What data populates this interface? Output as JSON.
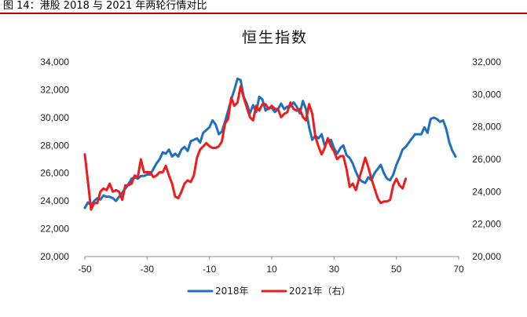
{
  "figure_caption": "图 14：港股 2018 与 2021 年两轮行情对比",
  "chart_data": {
    "type": "line",
    "title": "恒生指数",
    "xlabel": "",
    "ylabel": "",
    "xlim": [
      -50,
      70
    ],
    "x_ticks": [
      -50,
      -30,
      -10,
      10,
      30,
      50,
      70
    ],
    "x_tick_labels": [
      "-50",
      "-30",
      "-10",
      "10",
      "30",
      "50",
      "70"
    ],
    "ylim_left": [
      20000,
      34000
    ],
    "y_left_ticks": [
      20000,
      22000,
      24000,
      26000,
      28000,
      30000,
      32000,
      34000
    ],
    "y_left_tick_labels": [
      "20,000",
      "22,000",
      "24,000",
      "26,000",
      "28,000",
      "30,000",
      "32,000",
      "34,000"
    ],
    "ylim_right": [
      20000,
      32000
    ],
    "y_right_ticks": [
      20000,
      22000,
      24000,
      26000,
      28000,
      30000,
      32000
    ],
    "y_right_tick_labels": [
      "20,000",
      "22,000",
      "24,000",
      "26,000",
      "28,000",
      "30,000",
      "32,000"
    ],
    "grid": false,
    "legend_position": "bottom",
    "series": [
      {
        "name": "2018年",
        "color": "#1f6fbf",
        "axis": "left",
        "x": [
          -50,
          -49,
          -48,
          -47,
          -46,
          -45,
          -44,
          -43,
          -42,
          -41,
          -40,
          -39,
          -38,
          -37,
          -36,
          -35,
          -34,
          -33,
          -32,
          -31,
          -30,
          -29,
          -28,
          -27,
          -26,
          -25,
          -24,
          -23,
          -22,
          -21,
          -20,
          -19,
          -18,
          -17,
          -16,
          -15,
          -14,
          -13,
          -12,
          -11,
          -10,
          -9,
          -8,
          -7,
          -6,
          -5,
          -4,
          -3,
          -2,
          -1,
          0,
          1,
          2,
          3,
          4,
          5,
          6,
          7,
          8,
          9,
          10,
          11,
          12,
          13,
          14,
          15,
          16,
          17,
          18,
          19,
          20,
          21,
          22,
          23,
          24,
          25,
          26,
          27,
          28,
          29,
          30,
          31,
          32,
          33,
          34,
          35,
          36,
          37,
          38,
          39,
          40,
          41,
          42,
          43,
          44,
          45,
          46,
          47,
          48,
          49,
          50,
          51,
          52,
          53,
          54,
          55,
          56,
          57,
          58,
          59,
          60,
          61,
          62,
          63,
          64,
          65,
          66,
          67,
          68,
          69
        ],
        "y": [
          23500,
          23900,
          23700,
          24000,
          24200,
          24100,
          24400,
          24300,
          24300,
          24200,
          24000,
          24300,
          24600,
          24900,
          25200,
          25600,
          25700,
          25600,
          25800,
          25800,
          25900,
          25900,
          26300,
          26700,
          27000,
          27500,
          27400,
          27700,
          27200,
          27400,
          27200,
          27700,
          27900,
          27600,
          28300,
          28400,
          28500,
          28200,
          28900,
          29100,
          29300,
          29800,
          29500,
          28800,
          29000,
          29700,
          30500,
          31300,
          32000,
          32800,
          32700,
          31500,
          31000,
          30300,
          30900,
          30400,
          31500,
          31300,
          30500,
          30700,
          30700,
          30400,
          30600,
          31000,
          30600,
          30800,
          30800,
          31100,
          30800,
          30300,
          31200,
          30600,
          29300,
          28400,
          28700,
          28500,
          28800,
          28000,
          28300,
          28400,
          27800,
          27400,
          27800,
          28000,
          27300,
          27100,
          26700,
          26100,
          25600,
          25400,
          25300,
          25700,
          25500,
          26000,
          26300,
          26600,
          26000,
          25600,
          25500,
          25900,
          26600,
          27100,
          27700,
          27900,
          28200,
          28500,
          28800,
          28800,
          28800,
          29300,
          28900,
          29900,
          30000,
          29900,
          29700,
          29800,
          29200,
          28200,
          27600,
          27200
        ]
      },
      {
        "name": "2021年（右）",
        "color": "#ee1c1c",
        "axis": "right",
        "x": [
          -50,
          -49,
          -48,
          -47,
          -46,
          -45,
          -44,
          -43,
          -42,
          -41,
          -40,
          -39,
          -38,
          -37,
          -36,
          -35,
          -34,
          -33,
          -32,
          -31,
          -30,
          -29,
          -28,
          -27,
          -26,
          -25,
          -24,
          -23,
          -22,
          -21,
          -20,
          -19,
          -18,
          -17,
          -16,
          -15,
          -14,
          -13,
          -12,
          -11,
          -10,
          -9,
          -8,
          -7,
          -6,
          -5,
          -4,
          -3,
          -2,
          -1,
          0,
          1,
          2,
          3,
          4,
          5,
          6,
          7,
          8,
          9,
          10,
          11,
          12,
          13,
          14,
          15,
          16,
          17,
          18,
          19,
          20,
          21,
          22,
          23,
          24,
          25,
          26,
          27,
          28,
          29,
          30,
          31,
          32,
          33,
          34,
          35,
          36,
          37,
          38,
          39,
          40,
          41,
          42,
          43,
          44,
          45,
          46,
          47,
          48,
          49,
          50,
          51,
          52,
          53
        ],
        "y": [
          26300,
          24600,
          22900,
          23300,
          23300,
          24000,
          24200,
          24100,
          24500,
          24000,
          24100,
          24000,
          23500,
          24400,
          24400,
          24500,
          25000,
          24900,
          26000,
          25200,
          25200,
          25200,
          24900,
          25000,
          25200,
          25200,
          25600,
          25000,
          24500,
          23700,
          23600,
          24000,
          24500,
          24700,
          24600,
          25000,
          26100,
          26600,
          26800,
          27000,
          26800,
          26700,
          26700,
          26800,
          27100,
          28200,
          28500,
          29800,
          29300,
          29500,
          30500,
          29800,
          29200,
          28600,
          28400,
          29300,
          29000,
          29400,
          29400,
          29100,
          29300,
          29100,
          29100,
          28600,
          28800,
          28900,
          29500,
          29100,
          29000,
          29100,
          28600,
          28400,
          29400,
          28800,
          27400,
          26800,
          26300,
          26700,
          27300,
          26800,
          26500,
          26000,
          26200,
          26200,
          25400,
          24300,
          24500,
          24100,
          24800,
          25400,
          26100,
          25500,
          24800,
          24200,
          23600,
          23300,
          23400,
          23400,
          23500,
          24400,
          24800,
          24400,
          24200,
          24800
        ]
      }
    ]
  }
}
